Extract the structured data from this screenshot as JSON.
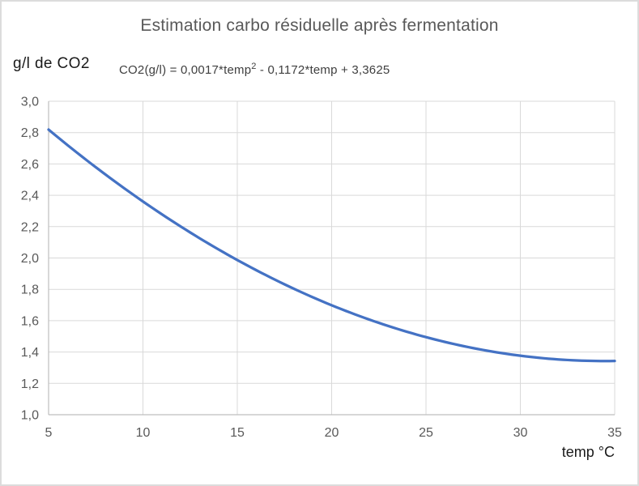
{
  "chart": {
    "title": "Estimation carbo résiduelle après fermentation",
    "y_axis_title": "g/l de CO2",
    "x_axis_title": "temp °C",
    "equation": {
      "prefix": "CO2(g/l) = 0,0017*temp",
      "superscript": "2",
      "suffix": " - 0,1172*temp + 3,3625"
    }
  },
  "chart_data": {
    "type": "line",
    "title": "Estimation carbo résiduelle après fermentation",
    "xlabel": "temp °C",
    "ylabel": "g/l de CO2",
    "xlim": [
      5,
      35
    ],
    "ylim": [
      1.0,
      3.0
    ],
    "x_ticks": [
      5,
      10,
      15,
      20,
      25,
      30,
      35
    ],
    "x_tick_labels": [
      "5",
      "10",
      "15",
      "20",
      "25",
      "30",
      "35"
    ],
    "y_ticks": [
      3.0,
      2.8,
      2.6,
      2.4,
      2.2,
      2.0,
      1.8,
      1.6,
      1.4,
      1.2,
      1.0
    ],
    "y_tick_labels": [
      "3,0",
      "2,8",
      "2,6",
      "2,4",
      "2,2",
      "2,0",
      "1,8",
      "1,6",
      "1,4",
      "1,2",
      "1,0"
    ],
    "grid": true,
    "legend": "none",
    "equation_label": "CO2(g/l) = 0,0017*temp2 - 0,1172*temp + 3,3625",
    "series": [
      {
        "name": "CO2(g/l)",
        "coefficients": {
          "a": 0.0017,
          "b": -0.1172,
          "c": 3.3625
        },
        "x": [
          5,
          6,
          7,
          8,
          9,
          10,
          11,
          12,
          13,
          14,
          15,
          16,
          17,
          18,
          19,
          20,
          21,
          22,
          23,
          24,
          25,
          26,
          27,
          28,
          29,
          30,
          31,
          32,
          33,
          34,
          35
        ],
        "y": [
          2.819,
          2.7205,
          2.6254,
          2.5337,
          2.4454,
          2.3605,
          2.279,
          2.2009,
          2.1262,
          2.0549,
          1.987,
          1.9225,
          1.8614,
          1.8037,
          1.7494,
          1.6985,
          1.651,
          1.6069,
          1.5662,
          1.5289,
          1.495,
          1.4645,
          1.4374,
          1.4137,
          1.3934,
          1.3765,
          1.363,
          1.3529,
          1.3462,
          1.3429,
          1.343
        ]
      }
    ],
    "colors": {
      "line": "#4472C4",
      "gridline": "#D9D9D9",
      "axis_line": "#BFBFBF",
      "tick_label": "#595959",
      "title": "#595959"
    }
  }
}
